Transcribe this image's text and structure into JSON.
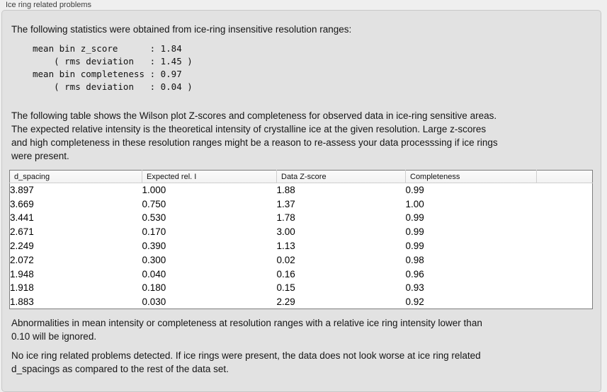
{
  "panel": {
    "title": "Ice ring related problems"
  },
  "stats": {
    "intro": "The following statistics were obtained from ice-ring insensitive resolution ranges:",
    "block": "mean bin z_score      : 1.84\n    ( rms deviation   : 1.45 )\nmean bin completeness : 0.97\n    ( rms deviation   : 0.04 )"
  },
  "description": "The following table shows the Wilson plot Z-scores and completeness for observed data in ice-ring sensitive areas.\nThe expected relative intensity is the theoretical intensity of crystalline ice at the given resolution. Large z-scores\nand high completeness in these resolution ranges might be a reason to re-assess your data processsing if ice rings\nwere present.",
  "table": {
    "columns": [
      "d_spacing",
      "Expected rel. I",
      "Data Z-score",
      "Completeness",
      ""
    ],
    "rows": [
      [
        "3.897",
        "1.000",
        "1.88",
        "0.99"
      ],
      [
        "3.669",
        "0.750",
        "1.37",
        "1.00"
      ],
      [
        "3.441",
        "0.530",
        "1.78",
        "0.99"
      ],
      [
        "2.671",
        "0.170",
        "3.00",
        "0.99"
      ],
      [
        "2.249",
        "0.390",
        "1.13",
        "0.99"
      ],
      [
        "2.072",
        "0.300",
        "0.02",
        "0.98"
      ],
      [
        "1.948",
        "0.040",
        "0.16",
        "0.96"
      ],
      [
        "1.918",
        "0.180",
        "0.15",
        "0.93"
      ],
      [
        "1.883",
        "0.030",
        "2.29",
        "0.92"
      ]
    ]
  },
  "notes": {
    "threshold": "Abnormalities in mean intensity or completeness at resolution ranges with a relative ice ring intensity lower than\n0.10 will be ignored.",
    "conclusion": "No ice ring related problems detected. If ice rings were present, the data does not look worse at ice ring related\nd_spacings as compared to the rest of the data set."
  },
  "colors": {
    "outer_bg": "#efefef",
    "panel_bg": "#e2e2e2",
    "table_header_bg": "#f7f7f7",
    "table_body_bg": "#ffffff",
    "table_border": "#7e7e7e",
    "text": "#1b1b1b"
  }
}
